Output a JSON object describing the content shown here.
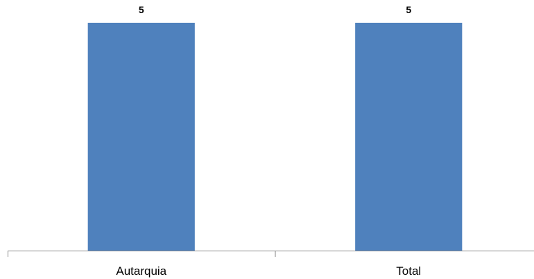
{
  "chart_data": {
    "type": "bar",
    "categories": [
      "Autarquia",
      "Total"
    ],
    "values": [
      5,
      5
    ],
    "title": "",
    "xlabel": "",
    "ylabel": "",
    "ylim": [
      0,
      5.5
    ],
    "grid": false,
    "legend": "none",
    "data_labels": true,
    "bar_color": "#4f81bd",
    "axis_color": "#868686"
  }
}
